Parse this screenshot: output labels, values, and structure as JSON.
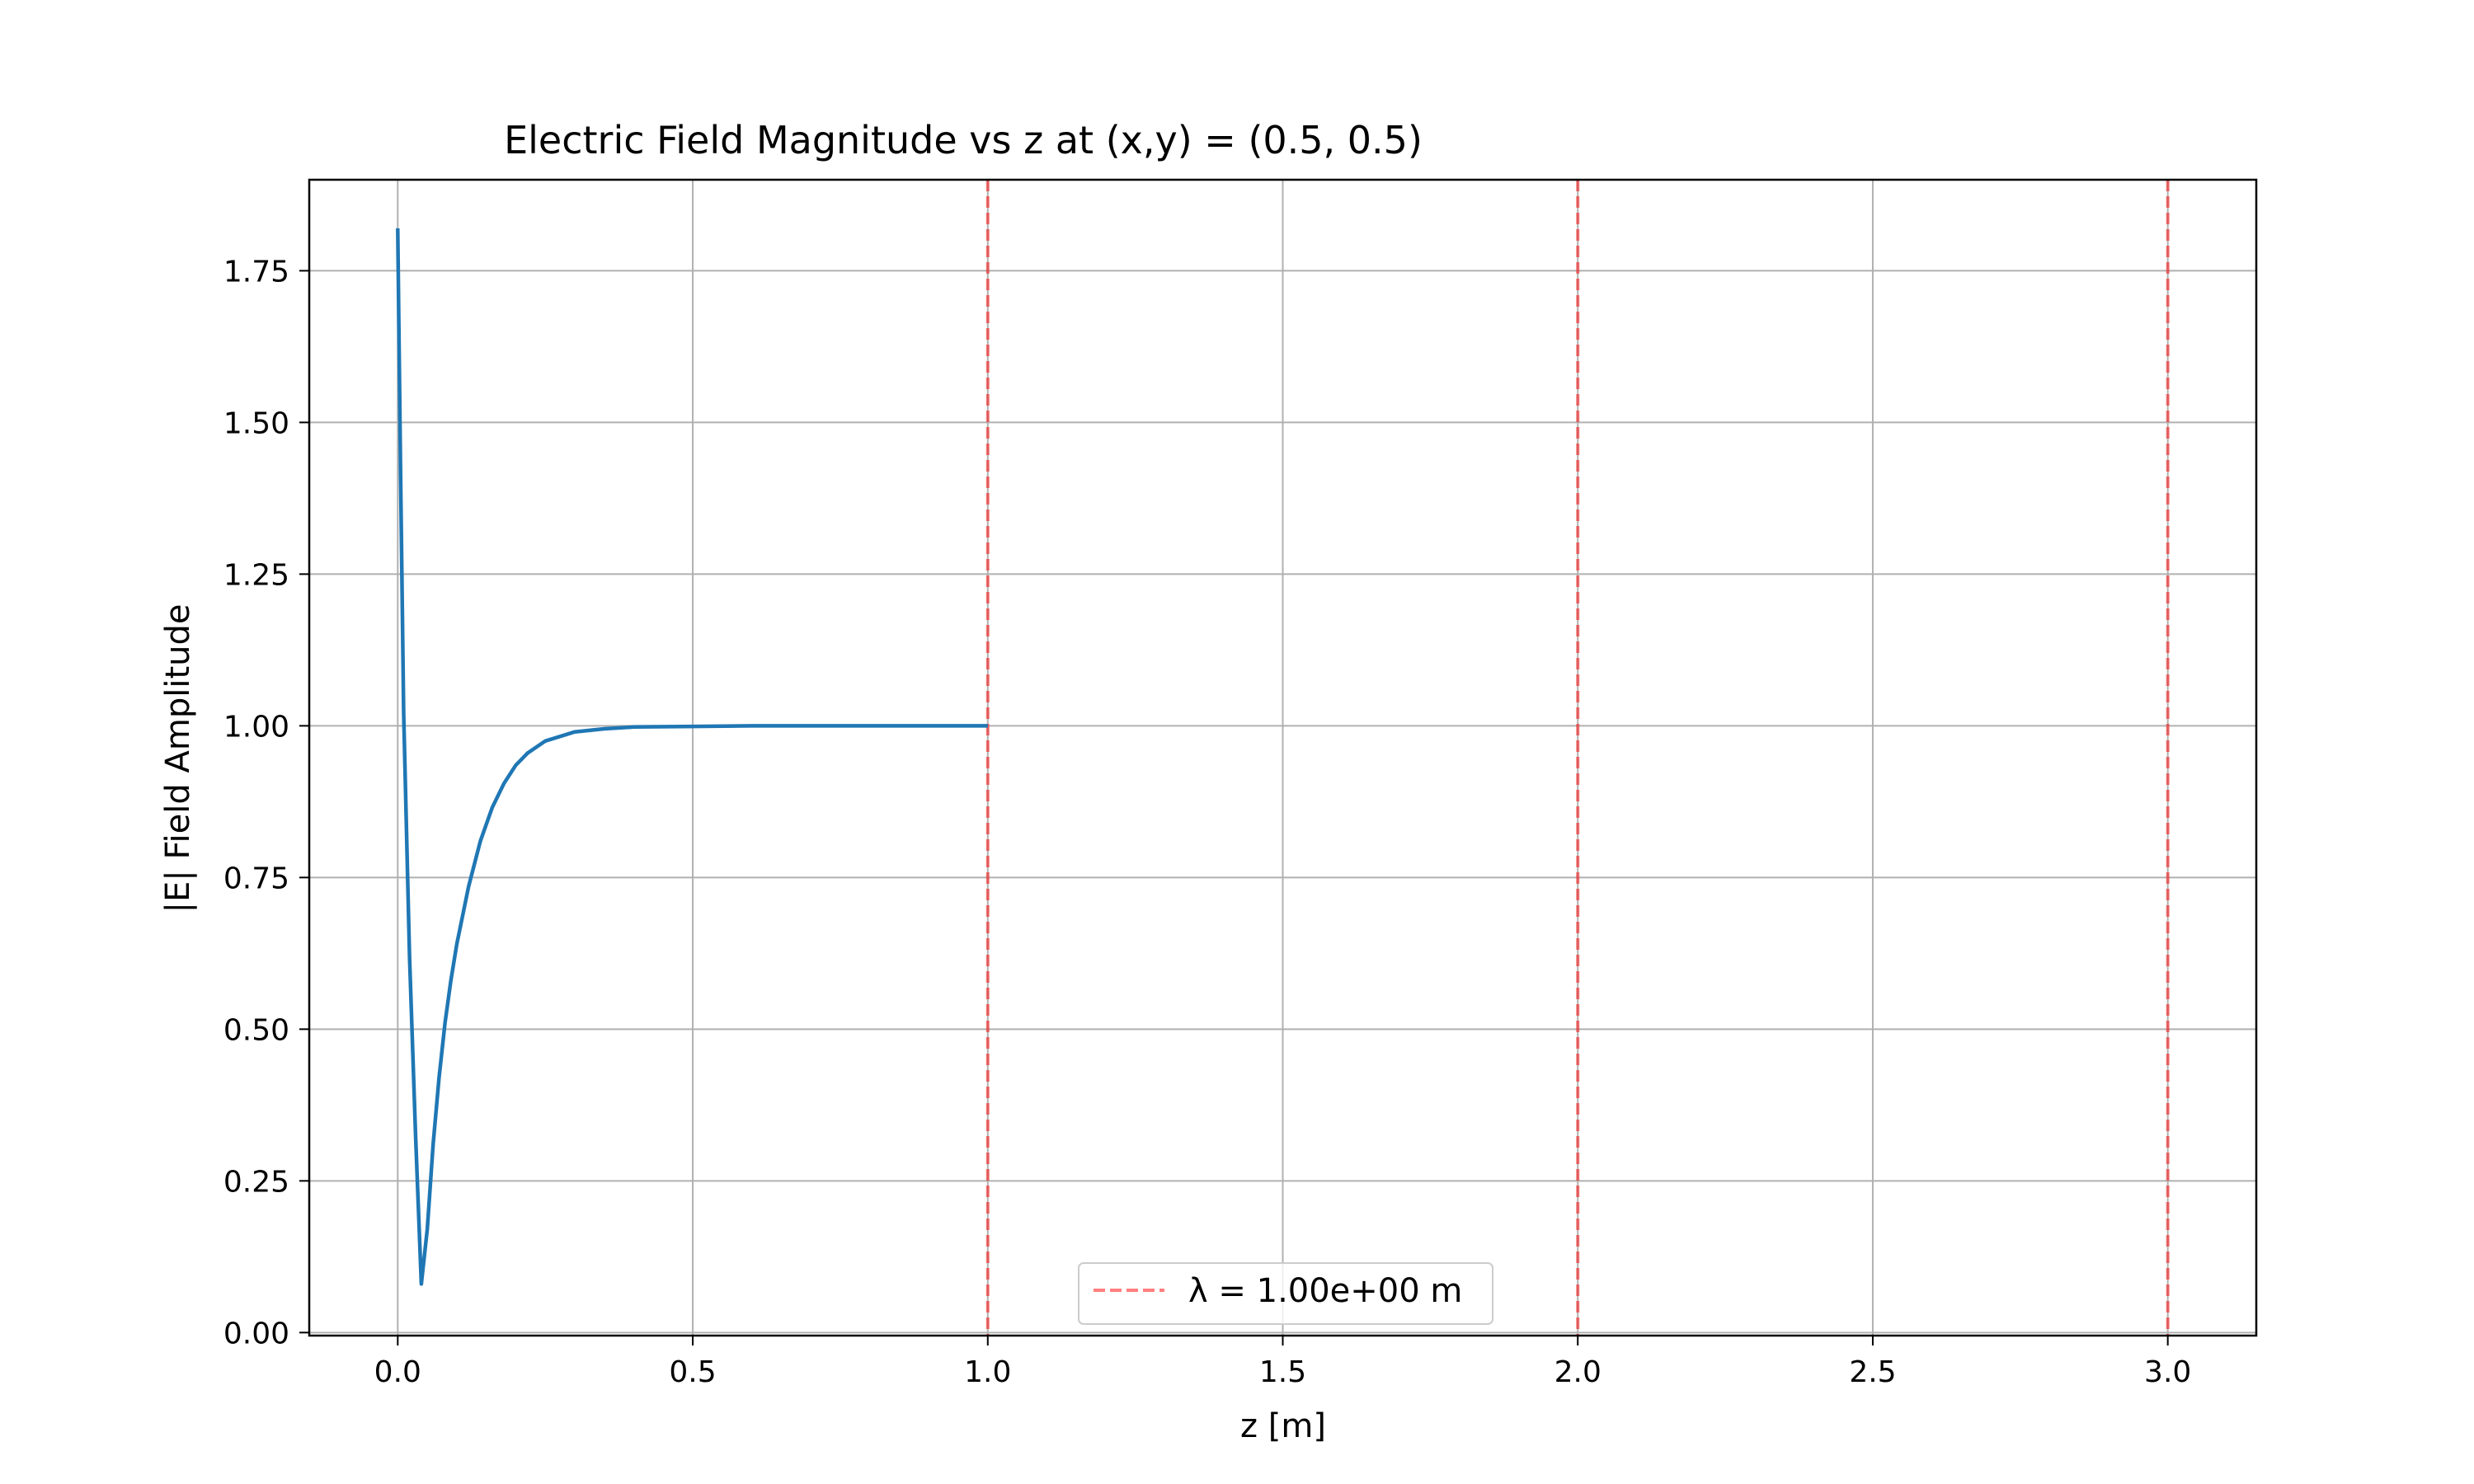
{
  "chart_data": {
    "type": "line",
    "title": "Electric Field Magnitude vs z at (x,y) = (0.5, 0.5)",
    "xlabel": "z [m]",
    "ylabel": "|E| Field Amplitude",
    "xlim": [
      -0.15,
      3.15
    ],
    "ylim": [
      -0.005,
      1.9
    ],
    "grid": true,
    "xticks": [
      0.0,
      0.5,
      1.0,
      1.5,
      2.0,
      2.5,
      3.0
    ],
    "xtick_labels": [
      "0.0",
      "0.5",
      "1.0",
      "1.5",
      "2.0",
      "2.5",
      "3.0"
    ],
    "yticks": [
      0.0,
      0.25,
      0.5,
      0.75,
      1.0,
      1.25,
      1.5,
      1.75
    ],
    "ytick_labels": [
      "0.00",
      "0.25",
      "0.50",
      "0.75",
      "1.00",
      "1.25",
      "1.50",
      "1.75"
    ],
    "series": [
      {
        "color": "#1f77b4",
        "x": [
          0.0,
          0.005,
          0.01,
          0.02,
          0.03,
          0.04,
          0.05,
          0.06,
          0.07,
          0.08,
          0.09,
          0.1,
          0.12,
          0.14,
          0.16,
          0.18,
          0.2,
          0.22,
          0.25,
          0.3,
          0.35,
          0.4,
          0.5,
          0.6,
          0.7,
          0.8,
          0.9,
          1.0
        ],
        "y": [
          1.82,
          1.4,
          1.02,
          0.62,
          0.33,
          0.08,
          0.17,
          0.31,
          0.42,
          0.51,
          0.58,
          0.64,
          0.735,
          0.81,
          0.865,
          0.905,
          0.935,
          0.955,
          0.975,
          0.99,
          0.995,
          0.998,
          0.999,
          1.0,
          1.0,
          1.0,
          1.0,
          1.0
        ]
      }
    ],
    "vlines": [
      {
        "x": 1.0,
        "color": "#ff0000",
        "style": "dashed"
      },
      {
        "x": 2.0,
        "color": "#ff0000",
        "style": "dashed"
      },
      {
        "x": 3.0,
        "color": "#ff0000",
        "style": "dashed"
      }
    ],
    "legend": {
      "placement": "lower-center",
      "entries": [
        {
          "label": "λ = 1.00e+00 m",
          "color": "#ff0000",
          "style": "dashed"
        }
      ]
    }
  }
}
